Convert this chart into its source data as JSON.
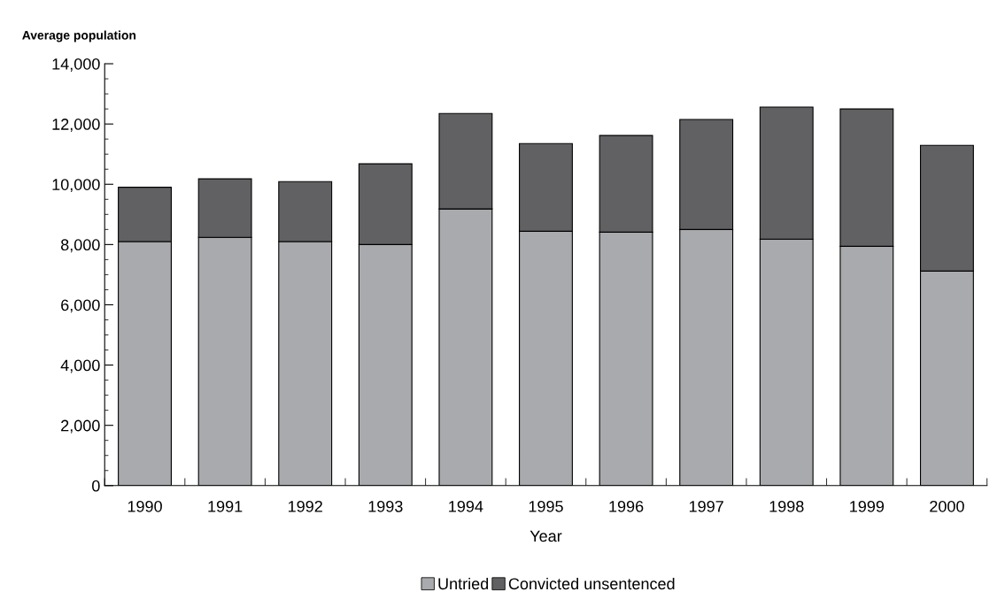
{
  "chart_data": {
    "type": "bar",
    "stacked": true,
    "ylabel": "Average population",
    "xlabel": "Year",
    "categories": [
      "1990",
      "1991",
      "1992",
      "1993",
      "1994",
      "1995",
      "1996",
      "1997",
      "1998",
      "1999",
      "2000"
    ],
    "series": [
      {
        "name": "Untried",
        "color": "#a9aaad",
        "values": [
          8100,
          8240,
          8100,
          8000,
          9180,
          8440,
          8410,
          8500,
          8180,
          7940,
          7120
        ]
      },
      {
        "name": "Convicted unsentenced",
        "color": "#616163",
        "values": [
          1800,
          1940,
          1990,
          2680,
          3170,
          2910,
          3210,
          3650,
          4380,
          4560,
          4170
        ]
      }
    ],
    "ylim": [
      0,
      14000
    ],
    "yticks": [
      {
        "value": 0,
        "label": "0"
      },
      {
        "value": 2000,
        "label": "2,000"
      },
      {
        "value": 4000,
        "label": "4,000"
      },
      {
        "value": 6000,
        "label": "6,000"
      },
      {
        "value": 8000,
        "label": "8,000"
      },
      {
        "value": 10000,
        "label": "10,000"
      },
      {
        "value": 12000,
        "label": "12,000"
      },
      {
        "value": 14000,
        "label": "14,000"
      }
    ],
    "grid": false,
    "legend": "bottom"
  }
}
